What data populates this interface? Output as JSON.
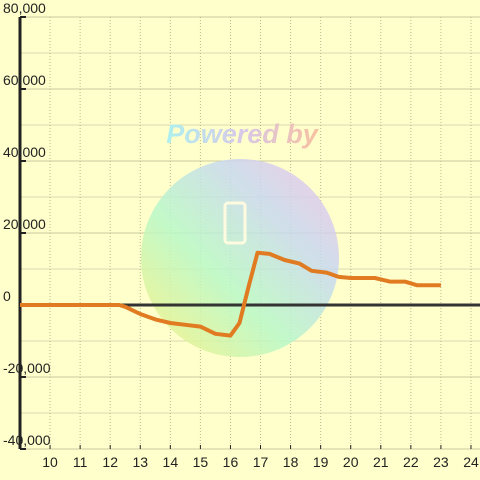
{
  "chart_data": {
    "type": "line",
    "watermark": "Powered by",
    "x": [
      9,
      12,
      12.3,
      12.5,
      13,
      13.5,
      14,
      14.5,
      15,
      15.5,
      16,
      16.3,
      16.6,
      16.9,
      17.3,
      17.8,
      18.3,
      18.7,
      19.2,
      19.6,
      20,
      20.8,
      21.3,
      21.8,
      22.2,
      23
    ],
    "series": [
      {
        "color": "#e07b22",
        "values": [
          0,
          0,
          0,
          -500,
          -2500,
          -4000,
          -5000,
          -5500,
          -6000,
          -8000,
          -8500,
          -5000,
          5000,
          14500,
          14200,
          12500,
          11500,
          9500,
          9000,
          7800,
          7500,
          7500,
          6500,
          6500,
          5500,
          5500
        ]
      }
    ],
    "xlim": [
      9,
      24.3
    ],
    "xticks": [
      10,
      11,
      12,
      13,
      14,
      15,
      16,
      17,
      18,
      19,
      20,
      21,
      22,
      23,
      24
    ],
    "ylim": [
      -40000,
      80000
    ],
    "yticks": [
      {
        "value": -40000,
        "label": "-40,000"
      },
      {
        "value": -20000,
        "label": "-20,000"
      },
      0,
      {
        "value": 20000,
        "label": "20,000"
      },
      {
        "value": 40000,
        "label": "40,000"
      },
      {
        "value": 60000,
        "label": "60,000"
      },
      {
        "value": 80000,
        "label": "80,000"
      }
    ],
    "y_minor_ticks": [
      -30000,
      -10000,
      10000,
      30000,
      50000,
      70000
    ],
    "grid": true
  }
}
